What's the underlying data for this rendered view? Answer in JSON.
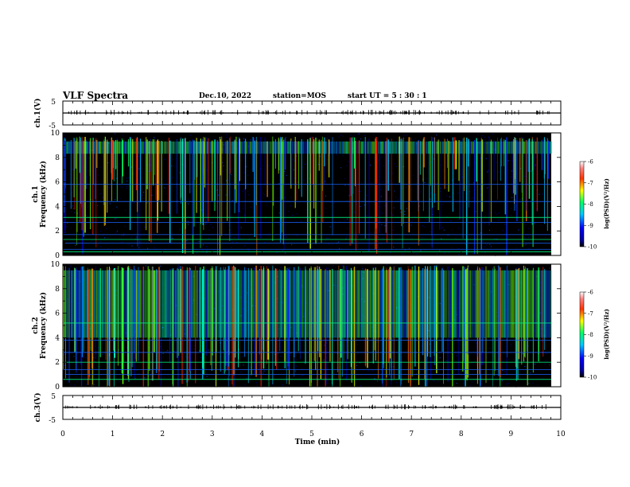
{
  "header": {
    "title": "VLF Spectra",
    "date": "Dec.10, 2022",
    "station": "station=MOS",
    "start_ut": "start UT =  5 : 30 : 1"
  },
  "colors": {
    "background": "#ffffff",
    "spectrogram_floor": "#000000",
    "axis": "#000000"
  },
  "chart_data": [
    {
      "type": "line",
      "name": "ch1-waveform",
      "ylabel": "ch.1(V)",
      "ylim": [
        -5,
        5
      ],
      "yticks": [
        "5",
        "-5"
      ],
      "xlim": [
        0,
        10
      ],
      "baseline_value": 0
    },
    {
      "type": "heatmap",
      "name": "ch1-spectrogram",
      "ylabel_line1": "ch.1",
      "ylabel_line2": "Frequency (kHz)",
      "ylim": [
        0,
        10
      ],
      "yticks": [
        "0",
        "2",
        "4",
        "6",
        "8",
        "10"
      ],
      "xlim": [
        0,
        10
      ],
      "band_upper_khz": 9.3,
      "band_lower_khz": 8.3,
      "horizontal_lines_khz": [
        0.3,
        0.5,
        1.0,
        1.3,
        1.7,
        2.7,
        3.1,
        4.4,
        5.8
      ],
      "colorbar": {
        "label": "log(PSD)(V²/Hz)",
        "range": [
          -10,
          -6
        ],
        "ticks": [
          "-6",
          "-7",
          "-8",
          "-9",
          "-10"
        ]
      }
    },
    {
      "type": "heatmap",
      "name": "ch2-spectrogram",
      "ylabel_line1": "ch.2",
      "ylabel_line2": "Frequency (kHz)",
      "ylim": [
        0,
        10
      ],
      "yticks": [
        "0",
        "2",
        "4",
        "6",
        "8",
        "10"
      ],
      "xlim": [
        0,
        10
      ],
      "band_upper_khz": 9.5,
      "band_lower_khz": 4.0,
      "horizontal_lines_khz": [
        0.6,
        1.0,
        1.4,
        2.0,
        2.8,
        3.8,
        5.2
      ],
      "colorbar": {
        "label": "log(PSD)(V²/Hz)",
        "range": [
          -10,
          -6
        ],
        "ticks": [
          "-6",
          "-7",
          "-8",
          "-9",
          "-10"
        ]
      }
    },
    {
      "type": "line",
      "name": "ch3-waveform",
      "ylabel": "ch.3(V)",
      "ylim": [
        -5,
        5
      ],
      "yticks": [
        "5",
        "-5"
      ],
      "xlim": [
        0,
        10
      ],
      "baseline_value": 0
    }
  ],
  "x_axis": {
    "label": "Time (min)",
    "range": [
      0,
      10
    ],
    "ticks": [
      "0",
      "1",
      "2",
      "3",
      "4",
      "5",
      "6",
      "7",
      "8",
      "9",
      "10"
    ]
  }
}
